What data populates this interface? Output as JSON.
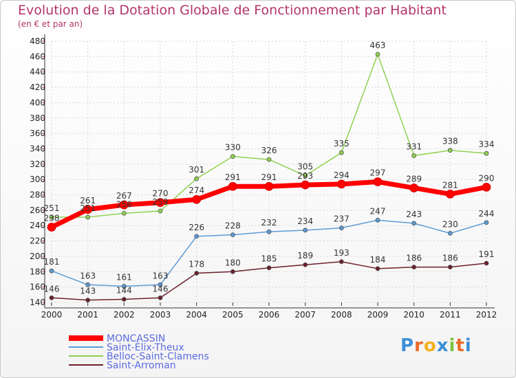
{
  "chart_data": {
    "type": "line",
    "title": "Evolution de la Dotation Globale de Fonctionnement par Habitant",
    "subtitle": "(en € et par an)",
    "x": [
      "2000",
      "2001",
      "2002",
      "2003",
      "2004",
      "2005",
      "2006",
      "2007",
      "2008",
      "2009",
      "2010",
      "2011",
      "2012"
    ],
    "ylim": [
      140,
      480
    ],
    "yticks": [
      140,
      160,
      180,
      200,
      220,
      240,
      260,
      280,
      300,
      320,
      340,
      360,
      380,
      400,
      420,
      440,
      460,
      480
    ],
    "grid": true,
    "legend_position": "bottom-left",
    "series": [
      {
        "name": "MONCASSIN",
        "color": "#ff0000",
        "values": [
          238,
          261,
          267,
          270,
          274,
          291,
          291,
          293,
          294,
          297,
          289,
          281,
          290
        ]
      },
      {
        "name": "Saint-Élix-Theux",
        "color": "#5b9bd5",
        "values": [
          181,
          163,
          161,
          163,
          226,
          228,
          232,
          234,
          237,
          247,
          243,
          230,
          244
        ]
      },
      {
        "name": "Belloc-Saint-Clamens",
        "color": "#8fd14f",
        "values": [
          251,
          251,
          256,
          259,
          301,
          330,
          326,
          305,
          335,
          463,
          331,
          338,
          334
        ]
      },
      {
        "name": "Saint-Arroman",
        "color": "#6b1f2a",
        "values": [
          146,
          143,
          144,
          146,
          178,
          180,
          185,
          189,
          193,
          184,
          186,
          186,
          191
        ]
      }
    ],
    "data_labels": {
      "MONCASSIN": [
        "238",
        "261",
        "267",
        "270",
        "274",
        "291",
        "291",
        "293",
        "294",
        "297",
        "289",
        "281",
        "290"
      ],
      "Saint-Élix-Theux": [
        "181",
        "163",
        "161",
        "163",
        "226",
        "228",
        "232",
        "234",
        "237",
        "247",
        "243",
        "230",
        "244"
      ],
      "Belloc-Saint-Clamens": [
        "251",
        "251",
        "256",
        "259",
        "301",
        "330",
        "326",
        "305",
        "335",
        "463",
        "331",
        "338",
        "334"
      ],
      "Saint-Arroman": [
        "146",
        "143",
        "144",
        "146",
        "178",
        "180",
        "185",
        "189",
        "193",
        "184",
        "186",
        "186",
        "191"
      ]
    }
  },
  "logo": {
    "text": "Proxiti"
  }
}
